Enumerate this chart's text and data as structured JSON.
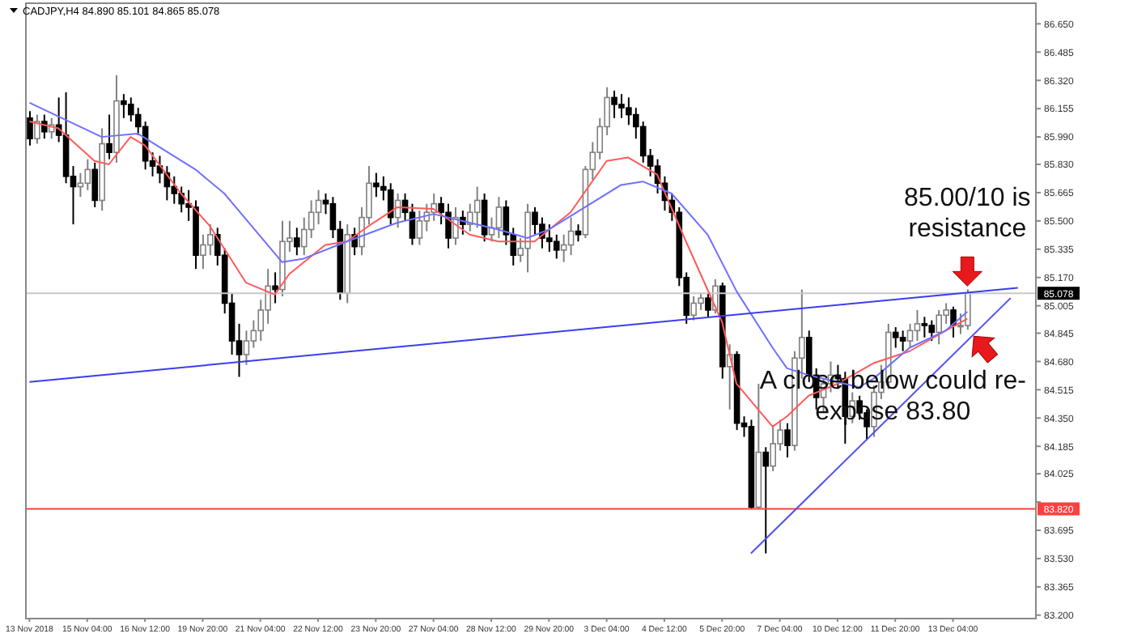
{
  "chart_data": {
    "type": "candlestick",
    "title": "CADJPY,H4  84.890 85.101 84.865 85.078",
    "categories": [
      "13 Nov 2018",
      null,
      null,
      null,
      null,
      null,
      null,
      null,
      "15 Nov 04:00",
      null,
      null,
      null,
      null,
      null,
      null,
      null,
      "16 Nov 12:00",
      null,
      null,
      null,
      null,
      null,
      null,
      null,
      "19 Nov 20:00",
      null,
      null,
      null,
      null,
      null,
      null,
      null,
      "21 Nov 04:00",
      null,
      null,
      null,
      null,
      null,
      null,
      null,
      "22 Nov 12:00",
      null,
      null,
      null,
      null,
      null,
      null,
      null,
      "23 Nov 20:00",
      null,
      null,
      null,
      null,
      null,
      null,
      null,
      "27 Nov 04:00",
      null,
      null,
      null,
      null,
      null,
      null,
      null,
      "28 Nov 12:00",
      null,
      null,
      null,
      null,
      null,
      null,
      null,
      "29 Nov 20:00",
      null,
      null,
      null,
      null,
      null,
      null,
      null,
      "3 Dec 04:00",
      null,
      null,
      null,
      null,
      null,
      null,
      null,
      "4 Dec 12:00",
      null,
      null,
      null,
      null,
      null,
      null,
      null,
      "5 Dec 20:00",
      null,
      null,
      null,
      null,
      null,
      null,
      null,
      "7 Dec 04:00",
      null,
      null,
      null,
      null,
      null,
      null,
      null,
      "10 Dec 12:00",
      null,
      null,
      null,
      null,
      null,
      null,
      null,
      "11 Dec 20:00",
      null,
      null,
      null,
      null,
      null,
      null,
      null,
      "13 Dec 04:00",
      null,
      null,
      null,
      null,
      null,
      null,
      null,
      null,
      null,
      null,
      null
    ],
    "ylim": [
      83.18,
      86.77
    ],
    "yticks": [
      {
        "value": 83.2,
        "label": "83.200"
      },
      {
        "value": 83.365,
        "label": "83.365"
      },
      {
        "value": 83.53,
        "label": "83.530"
      },
      {
        "value": 83.695,
        "label": "83.695"
      },
      {
        "value": 83.86,
        "label": null
      },
      {
        "value": 84.025,
        "label": "84.025"
      },
      {
        "value": 84.185,
        "label": "84.185"
      },
      {
        "value": 84.35,
        "label": "84.350"
      },
      {
        "value": 84.515,
        "label": "84.515"
      },
      {
        "value": 84.68,
        "label": "84.680"
      },
      {
        "value": 84.845,
        "label": "84.845"
      },
      {
        "value": 85.005,
        "label": "85.005"
      },
      {
        "value": 85.17,
        "label": "85.170"
      },
      {
        "value": 85.335,
        "label": "85.335"
      },
      {
        "value": 85.5,
        "label": "85.500"
      },
      {
        "value": 85.665,
        "label": "85.665"
      },
      {
        "value": 85.83,
        "label": "85.830"
      },
      {
        "value": 85.99,
        "label": "85.990"
      },
      {
        "value": 86.155,
        "label": "86.155"
      },
      {
        "value": 86.32,
        "label": "86.320"
      },
      {
        "value": 86.485,
        "label": "86.485"
      },
      {
        "value": 86.65,
        "label": "86.650"
      }
    ],
    "ohlc": [
      [
        86.1,
        86.14,
        85.94,
        85.98
      ],
      [
        85.98,
        86.12,
        85.95,
        86.08
      ],
      [
        86.08,
        86.12,
        85.98,
        86.02
      ],
      [
        86.02,
        86.1,
        85.98,
        86.06
      ],
      [
        86.06,
        86.22,
        85.96,
        86.0
      ],
      [
        86.0,
        86.25,
        85.72,
        85.76
      ],
      [
        85.76,
        85.82,
        85.48,
        85.7
      ],
      [
        85.7,
        85.78,
        85.64,
        85.72
      ],
      [
        85.72,
        85.86,
        85.68,
        85.8
      ],
      [
        85.8,
        85.84,
        85.58,
        85.62
      ],
      [
        85.62,
        86.04,
        85.56,
        85.95
      ],
      [
        85.95,
        86.12,
        85.86,
        85.9
      ],
      [
        85.9,
        86.35,
        85.84,
        86.2
      ],
      [
        86.2,
        86.24,
        86.1,
        86.18
      ],
      [
        86.18,
        86.22,
        86.08,
        86.12
      ],
      [
        86.12,
        86.16,
        86.0,
        86.05
      ],
      [
        86.05,
        86.08,
        85.8,
        85.85
      ],
      [
        85.85,
        85.9,
        85.76,
        85.82
      ],
      [
        85.82,
        85.88,
        85.72,
        85.78
      ],
      [
        85.78,
        85.82,
        85.62,
        85.7
      ],
      [
        85.7,
        85.76,
        85.6,
        85.66
      ],
      [
        85.66,
        85.7,
        85.55,
        85.6
      ],
      [
        85.6,
        85.68,
        85.5,
        85.58
      ],
      [
        85.58,
        85.62,
        85.22,
        85.3
      ],
      [
        85.3,
        85.42,
        85.22,
        85.36
      ],
      [
        85.36,
        85.48,
        85.3,
        85.42
      ],
      [
        85.42,
        85.46,
        85.24,
        85.3
      ],
      [
        85.3,
        85.34,
        84.96,
        85.02
      ],
      [
        85.02,
        85.08,
        84.72,
        84.8
      ],
      [
        84.8,
        84.9,
        84.59,
        84.72
      ],
      [
        84.72,
        84.86,
        84.66,
        84.8
      ],
      [
        84.8,
        84.92,
        84.76,
        84.86
      ],
      [
        84.86,
        85.04,
        84.8,
        84.98
      ],
      [
        84.98,
        85.22,
        84.9,
        85.12
      ],
      [
        85.12,
        85.2,
        85.02,
        85.1
      ],
      [
        85.1,
        85.5,
        85.06,
        85.38
      ],
      [
        85.38,
        85.5,
        85.32,
        85.4
      ],
      [
        85.4,
        85.46,
        85.3,
        85.35
      ],
      [
        85.35,
        85.52,
        85.3,
        85.45
      ],
      [
        85.45,
        85.62,
        85.4,
        85.55
      ],
      [
        85.55,
        85.68,
        85.48,
        85.62
      ],
      [
        85.62,
        85.66,
        85.54,
        85.6
      ],
      [
        85.6,
        85.64,
        85.4,
        85.45
      ],
      [
        85.45,
        85.5,
        85.04,
        85.08
      ],
      [
        85.08,
        85.48,
        85.02,
        85.42
      ],
      [
        85.42,
        85.46,
        85.3,
        85.35
      ],
      [
        85.35,
        85.58,
        85.3,
        85.52
      ],
      [
        85.52,
        85.82,
        85.48,
        85.72
      ],
      [
        85.72,
        85.78,
        85.64,
        85.7
      ],
      [
        85.7,
        85.76,
        85.62,
        85.68
      ],
      [
        85.68,
        85.72,
        85.48,
        85.52
      ],
      [
        85.52,
        85.66,
        85.46,
        85.62
      ],
      [
        85.62,
        85.66,
        85.5,
        85.55
      ],
      [
        85.55,
        85.6,
        85.36,
        85.4
      ],
      [
        85.4,
        85.56,
        85.36,
        85.5
      ],
      [
        85.5,
        85.6,
        85.44,
        85.55
      ],
      [
        85.55,
        85.66,
        85.5,
        85.6
      ],
      [
        85.6,
        85.64,
        85.48,
        85.55
      ],
      [
        85.55,
        85.6,
        85.34,
        85.4
      ],
      [
        85.4,
        85.58,
        85.36,
        85.52
      ],
      [
        85.52,
        85.56,
        85.42,
        85.48
      ],
      [
        85.48,
        85.6,
        85.44,
        85.55
      ],
      [
        85.55,
        85.7,
        85.46,
        85.62
      ],
      [
        85.62,
        85.66,
        85.38,
        85.42
      ],
      [
        85.42,
        85.52,
        85.38,
        85.46
      ],
      [
        85.46,
        85.64,
        85.4,
        85.58
      ],
      [
        85.58,
        85.62,
        85.36,
        85.42
      ],
      [
        85.42,
        85.46,
        85.24,
        85.3
      ],
      [
        85.3,
        85.4,
        85.26,
        85.34
      ],
      [
        85.34,
        85.6,
        85.2,
        85.55
      ],
      [
        85.55,
        85.58,
        85.42,
        85.48
      ],
      [
        85.48,
        85.52,
        85.34,
        85.4
      ],
      [
        85.4,
        85.48,
        85.32,
        85.38
      ],
      [
        85.38,
        85.42,
        85.28,
        85.33
      ],
      [
        85.33,
        85.42,
        85.26,
        85.36
      ],
      [
        85.36,
        85.52,
        85.3,
        85.44
      ],
      [
        85.44,
        85.48,
        85.38,
        85.42
      ],
      [
        85.42,
        85.82,
        85.4,
        85.8
      ],
      [
        85.8,
        85.96,
        85.74,
        85.9
      ],
      [
        85.9,
        86.1,
        85.86,
        86.05
      ],
      [
        86.05,
        86.28,
        86.0,
        86.22
      ],
      [
        86.22,
        86.26,
        86.1,
        86.18
      ],
      [
        86.18,
        86.24,
        86.1,
        86.16
      ],
      [
        86.16,
        86.22,
        86.06,
        86.12
      ],
      [
        86.12,
        86.16,
        85.98,
        86.05
      ],
      [
        86.05,
        86.08,
        85.84,
        85.88
      ],
      [
        85.88,
        85.92,
        85.76,
        85.82
      ],
      [
        85.82,
        85.86,
        85.66,
        85.72
      ],
      [
        85.72,
        85.76,
        85.56,
        85.62
      ],
      [
        85.62,
        85.66,
        85.5,
        85.55
      ],
      [
        85.55,
        85.58,
        85.12,
        85.17
      ],
      [
        85.17,
        85.2,
        84.9,
        84.95
      ],
      [
        84.95,
        85.06,
        84.92,
        85.02
      ],
      [
        85.02,
        85.08,
        84.98,
        85.05
      ],
      [
        85.05,
        85.08,
        84.94,
        84.98
      ],
      [
        84.98,
        85.16,
        84.96,
        85.12
      ],
      [
        85.12,
        85.14,
        84.58,
        84.65
      ],
      [
        84.65,
        84.78,
        84.4,
        84.72
      ],
      [
        84.72,
        84.74,
        84.28,
        84.32
      ],
      [
        84.32,
        84.36,
        84.24,
        84.3
      ],
      [
        84.3,
        84.34,
        83.82,
        83.83
      ],
      [
        83.83,
        84.55,
        83.82,
        84.15
      ],
      [
        84.15,
        84.18,
        83.56,
        84.07
      ],
      [
        84.07,
        84.3,
        84.04,
        84.2
      ],
      [
        84.2,
        84.34,
        84.16,
        84.28
      ],
      [
        84.28,
        84.32,
        84.12,
        84.19
      ],
      [
        84.19,
        84.74,
        84.16,
        84.7
      ],
      [
        84.7,
        85.1,
        84.58,
        84.82
      ],
      [
        84.82,
        84.86,
        84.56,
        84.6
      ],
      [
        84.6,
        84.64,
        84.4,
        84.47
      ],
      [
        84.47,
        84.58,
        84.38,
        84.55
      ],
      [
        84.55,
        84.68,
        84.5,
        84.6
      ],
      [
        84.6,
        84.66,
        84.52,
        84.58
      ],
      [
        84.58,
        84.62,
        84.2,
        84.36
      ],
      [
        84.36,
        84.5,
        84.32,
        84.45
      ],
      [
        84.45,
        84.48,
        84.34,
        84.38
      ],
      [
        84.38,
        84.4,
        84.22,
        84.3
      ],
      [
        84.3,
        84.54,
        84.24,
        84.5
      ],
      [
        84.5,
        84.66,
        84.46,
        84.56
      ],
      [
        84.56,
        84.9,
        84.52,
        84.85
      ],
      [
        84.85,
        84.88,
        84.76,
        84.82
      ],
      [
        84.82,
        84.86,
        84.74,
        84.8
      ],
      [
        84.8,
        84.9,
        84.76,
        84.86
      ],
      [
        84.86,
        84.98,
        84.8,
        84.9
      ],
      [
        84.9,
        84.94,
        84.82,
        84.89
      ],
      [
        84.89,
        84.92,
        84.8,
        84.85
      ],
      [
        84.85,
        84.98,
        84.78,
        84.95
      ],
      [
        84.95,
        85.02,
        84.9,
        84.98
      ],
      [
        84.98,
        85.0,
        84.82,
        84.89
      ],
      [
        84.89,
        84.96,
        84.84,
        84.89
      ],
      [
        84.89,
        85.101,
        84.865,
        85.078
      ],
      null,
      null,
      null,
      null,
      null,
      null,
      null,
      null,
      null
    ],
    "series": [
      {
        "type": "line",
        "color": "#ff5a5a",
        "values": [
          86.08,
          null,
          null,
          null,
          86.04,
          null,
          null,
          null,
          null,
          85.85,
          null,
          85.83,
          null,
          null,
          85.99,
          null,
          85.94,
          null,
          null,
          null,
          null,
          85.66,
          null,
          null,
          null,
          85.47,
          null,
          null,
          null,
          null,
          85.14,
          null,
          null,
          null,
          85.07,
          null,
          85.19,
          null,
          null,
          null,
          null,
          85.36,
          null,
          null,
          85.38,
          null,
          null,
          85.47,
          null,
          null,
          null,
          85.58,
          null,
          null,
          null,
          null,
          85.57,
          null,
          null,
          null,
          null,
          85.42,
          null,
          null,
          null,
          85.38,
          null,
          null,
          null,
          null,
          85.38,
          null,
          null,
          null,
          null,
          85.55,
          null,
          null,
          null,
          null,
          85.85,
          null,
          null,
          85.87,
          null,
          null,
          null,
          85.77,
          null,
          null,
          null,
          85.38,
          null,
          null,
          null,
          null,
          84.91,
          null,
          84.55,
          null,
          null,
          null,
          null,
          84.3,
          null,
          84.36,
          null,
          null,
          84.48,
          null,
          null,
          null,
          84.55,
          null,
          null,
          null,
          null,
          84.67,
          null,
          null,
          null,
          null,
          84.74,
          null,
          null,
          null,
          null,
          84.86,
          null,
          null,
          84.93,
          null,
          null,
          null,
          null,
          null,
          null,
          null,
          null,
          null
        ]
      },
      {
        "type": "line",
        "color": "#7070ff",
        "values": [
          86.19,
          null,
          null,
          null,
          null,
          null,
          null,
          null,
          null,
          null,
          85.99,
          null,
          null,
          null,
          null,
          86.01,
          null,
          null,
          null,
          null,
          null,
          null,
          null,
          85.8,
          null,
          null,
          null,
          85.66,
          null,
          null,
          null,
          null,
          null,
          null,
          null,
          85.26,
          null,
          null,
          85.28,
          null,
          null,
          null,
          null,
          null,
          85.38,
          null,
          null,
          null,
          null,
          null,
          null,
          85.49,
          null,
          null,
          null,
          null,
          85.54,
          null,
          null,
          null,
          null,
          85.49,
          null,
          null,
          null,
          85.45,
          null,
          null,
          null,
          85.4,
          null,
          null,
          85.45,
          null,
          null,
          null,
          null,
          85.58,
          null,
          null,
          null,
          null,
          85.71,
          null,
          null,
          85.73,
          null,
          null,
          null,
          85.66,
          null,
          null,
          null,
          null,
          85.42,
          null,
          null,
          null,
          85.09,
          null,
          null,
          null,
          null,
          84.76,
          null,
          84.64,
          null,
          null,
          84.6,
          null,
          null,
          null,
          null,
          null,
          null,
          84.53,
          null,
          84.58,
          null,
          null,
          null,
          null,
          84.76,
          null,
          null,
          null,
          null,
          84.86,
          null,
          null,
          84.97,
          null,
          null,
          null,
          null,
          null,
          null,
          null,
          null,
          null
        ]
      },
      {
        "type": "line",
        "color": "#3c3cf0",
        "values": [
          84.56,
          null,
          null,
          null,
          null,
          null,
          null,
          null,
          null,
          null,
          null,
          null,
          null,
          null,
          null,
          null,
          null,
          null,
          null,
          null,
          null,
          null,
          null,
          null,
          null,
          null,
          null,
          null,
          null,
          null,
          null,
          null,
          null,
          null,
          null,
          null,
          null,
          null,
          null,
          null,
          null,
          null,
          null,
          null,
          null,
          null,
          null,
          null,
          null,
          null,
          null,
          null,
          null,
          null,
          null,
          null,
          null,
          null,
          null,
          null,
          null,
          null,
          null,
          null,
          null,
          null,
          null,
          null,
          null,
          null,
          null,
          null,
          null,
          null,
          null,
          null,
          null,
          null,
          null,
          null,
          null,
          null,
          null,
          null,
          null,
          null,
          null,
          null,
          null,
          null,
          null,
          null,
          null,
          null,
          null,
          null,
          null,
          null,
          null,
          null,
          null,
          null,
          null,
          null,
          null,
          null,
          null,
          null,
          null,
          null,
          null,
          null,
          null,
          null,
          null,
          null,
          null,
          null,
          null,
          null,
          null,
          null,
          null,
          null,
          null,
          null,
          null,
          null,
          null,
          null,
          null,
          null,
          null,
          null,
          null,
          null,
          null,
          85.11,
          null,
          null
        ]
      },
      {
        "type": "line",
        "color": "#5050f0",
        "values": [
          null,
          null,
          null,
          null,
          null,
          null,
          null,
          null,
          null,
          null,
          null,
          null,
          null,
          null,
          null,
          null,
          null,
          null,
          null,
          null,
          null,
          null,
          null,
          null,
          null,
          null,
          null,
          null,
          null,
          null,
          null,
          null,
          null,
          null,
          null,
          null,
          null,
          null,
          null,
          null,
          null,
          null,
          null,
          null,
          null,
          null,
          null,
          null,
          null,
          null,
          null,
          null,
          null,
          null,
          null,
          null,
          null,
          null,
          null,
          null,
          null,
          null,
          null,
          null,
          null,
          null,
          null,
          null,
          null,
          null,
          null,
          null,
          null,
          null,
          null,
          null,
          null,
          null,
          null,
          null,
          null,
          null,
          null,
          null,
          null,
          null,
          null,
          null,
          null,
          null,
          null,
          null,
          null,
          null,
          null,
          null,
          null,
          null,
          null,
          null,
          83.56,
          null,
          null,
          null,
          null,
          null,
          null,
          null,
          null,
          null,
          null,
          null,
          null,
          null,
          null,
          null,
          null,
          null,
          null,
          null,
          null,
          null,
          null,
          null,
          null,
          null,
          null,
          null,
          null,
          null,
          null,
          null,
          null,
          null,
          null,
          null,
          85.05,
          null,
          null,
          null
        ]
      }
    ],
    "ref_lines": [
      {
        "axis": "y",
        "value": 85.078,
        "label": "85.078",
        "color": "#c8c8c8"
      },
      {
        "axis": "y",
        "value": 83.82,
        "label": "83.820",
        "color": "#ff4040"
      }
    ],
    "annotations": [
      "85.00/10 is resistance",
      "A close below could re-expose 83.80"
    ]
  }
}
